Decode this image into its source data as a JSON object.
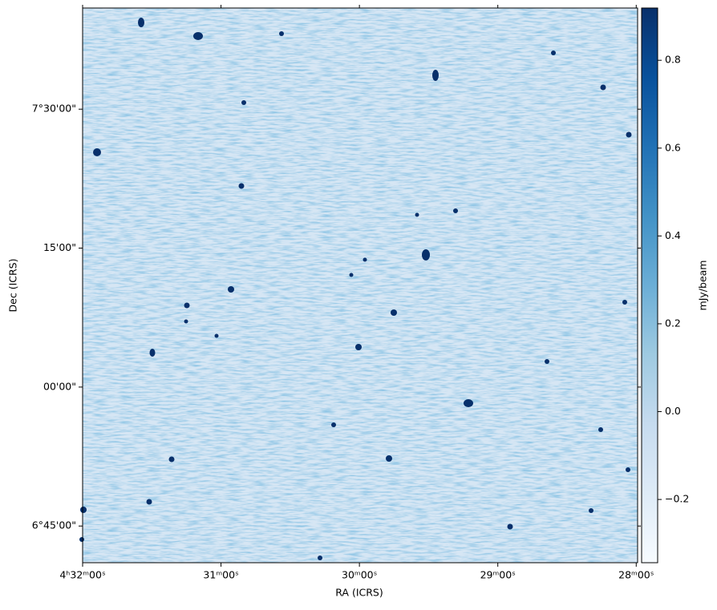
{
  "chart_data": {
    "type": "image",
    "xlabel": "RA (ICRS)",
    "ylabel": "Dec (ICRS)",
    "xlim": [
      32,
      27.99
    ],
    "xticks": [
      {
        "value": 32,
        "label": "4ʰ32ᵐ00ˢ"
      },
      {
        "value": 31,
        "label": "31ᵐ00ˢ"
      },
      {
        "value": 30,
        "label": "30ᵐ00ˢ"
      },
      {
        "value": 29,
        "label": "29ᵐ00ˢ"
      },
      {
        "value": 28,
        "label": "28ᵐ00ˢ"
      }
    ],
    "ylim": [
      6.684,
      7.682
    ],
    "yticks": [
      {
        "value": 7.5,
        "label": "7°30'00\""
      },
      {
        "value": 7.25,
        "label": "15'00\""
      },
      {
        "value": 7.0,
        "label": "00'00\""
      },
      {
        "value": 6.75,
        "label": "6°45'00\""
      }
    ],
    "colorbar": {
      "label": "mJy/beam",
      "lim": [
        -0.344,
        0.919
      ],
      "ticks": [
        {
          "value": -0.2,
          "label": "−0.2"
        },
        {
          "value": 0,
          "label": "0.0"
        },
        0.2,
        0.4,
        0.6,
        0.8
      ],
      "colors": [
        "#f7fbff",
        "#deebf7",
        "#c6dbef",
        "#9ecae1",
        "#6baed6",
        "#4292c6",
        "#2171b5",
        "#08519c",
        "#08306b"
      ]
    }
  }
}
